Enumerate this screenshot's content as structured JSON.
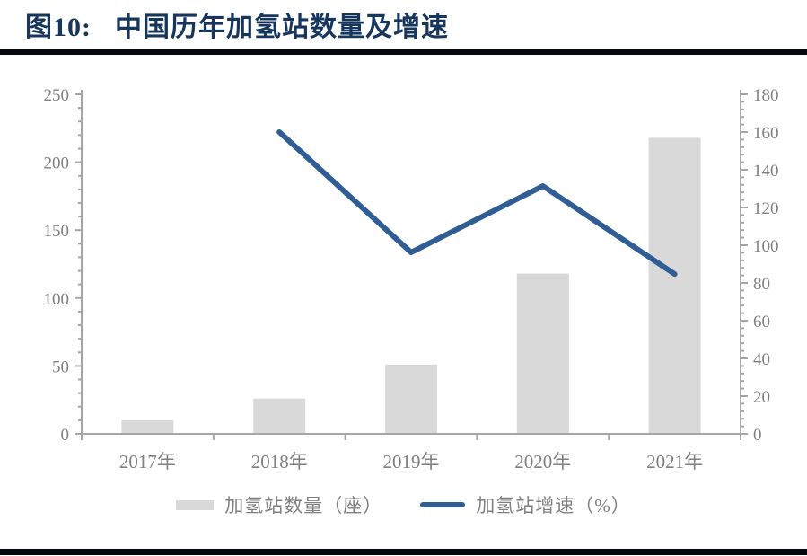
{
  "page": {
    "figure_label": "图10:",
    "title": "中国历年加氢站数量及增速"
  },
  "colors": {
    "title": "#17365d",
    "rule": "#06080f",
    "axis": "#a6a6a6",
    "tick_label": "#7f7f7f",
    "bar": "#d9d9d9",
    "line": "#2f5d94",
    "legend_text": "#7f7f7f"
  },
  "chart_data": {
    "type": "bar",
    "subtype": "bar+line combo, dual y-axis",
    "title": "中国历年加氢站数量及增速",
    "categories": [
      "2017年",
      "2018年",
      "2019年",
      "2020年",
      "2021年"
    ],
    "series": [
      {
        "name": "加氢站数量（座）",
        "type": "bar",
        "axis": "left",
        "values": [
          10,
          26,
          51,
          118,
          218
        ],
        "color": "#d9d9d9"
      },
      {
        "name": "加氢站增速（%）",
        "type": "line",
        "axis": "right",
        "values": [
          null,
          160,
          96.2,
          131.4,
          84.7
        ],
        "color": "#2f5d94"
      }
    ],
    "left_axis": {
      "min": 0,
      "max": 250,
      "major_step": 50,
      "minor_step": 10,
      "tick_labels": [
        "0",
        "50",
        "100",
        "150",
        "200",
        "250"
      ]
    },
    "right_axis": {
      "min": 0,
      "max": 180,
      "major_step": 20,
      "minor_step": 4,
      "tick_labels": [
        "0",
        "20",
        "40",
        "60",
        "80",
        "100",
        "120",
        "140",
        "160",
        "180"
      ]
    },
    "grid": false,
    "legend_position": "bottom",
    "legend": [
      "加氢站数量（座）",
      "加氢站增速（%）"
    ]
  }
}
